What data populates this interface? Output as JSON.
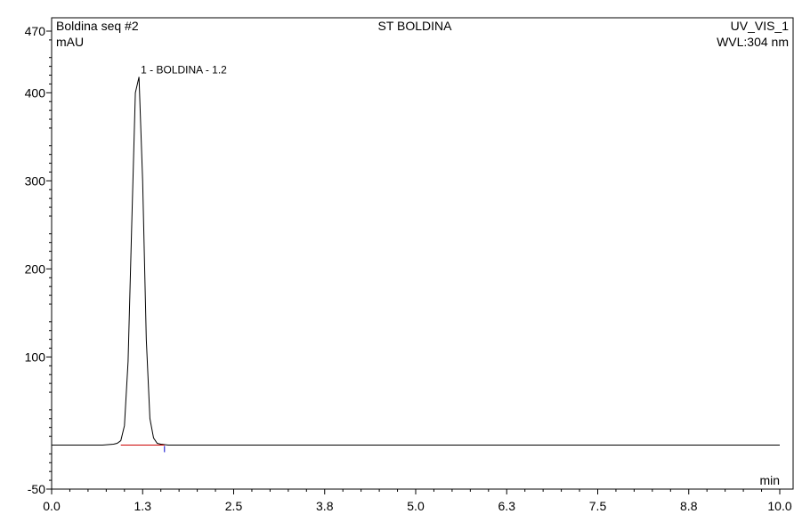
{
  "chart_data": {
    "type": "line",
    "header": {
      "left": "Boldina seq #2",
      "center": "ST BOLDINA",
      "right": "UV_VIS_1",
      "wavelength": "WVL:304 nm"
    },
    "ylabel": "mAU",
    "xlabel": "min",
    "xlim": [
      0.0,
      10.0
    ],
    "ylim": [
      -50,
      470
    ],
    "y_ticks": [
      "470",
      "400",
      "300",
      "200",
      "100",
      "-50"
    ],
    "x_ticks": [
      "0.0",
      "1.3",
      "2.5",
      "3.8",
      "5.0",
      "6.3",
      "7.5",
      "8.8",
      "10.0"
    ],
    "grid": false,
    "peaks": [
      {
        "label": "1 - BOLDINA - 1.2",
        "retention_time": 1.2,
        "height": 418
      }
    ],
    "series": [
      {
        "color": "#000000",
        "x": [
          0.0,
          0.7,
          0.85,
          0.9,
          0.95,
          1.0,
          1.05,
          1.1,
          1.15,
          1.2,
          1.25,
          1.3,
          1.35,
          1.4,
          1.45,
          1.5,
          1.6,
          10.0
        ],
        "y": [
          0,
          0,
          1,
          2,
          5,
          22,
          95,
          250,
          400,
          418,
          300,
          120,
          30,
          8,
          2,
          1,
          0,
          0
        ]
      }
    ],
    "baseline_color": "#cc0000",
    "marker_color": "#0000cc"
  }
}
